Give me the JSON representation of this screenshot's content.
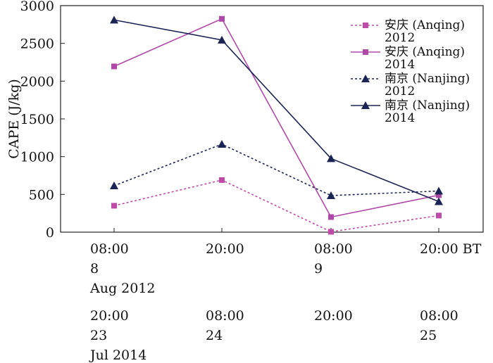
{
  "chart_data": {
    "type": "line",
    "ylabel": "CAPE (J/kg)",
    "ylim": [
      0,
      3000
    ],
    "yticks": [
      0,
      500,
      1000,
      1500,
      2000,
      2500,
      3000
    ],
    "x_categories": [
      {
        "row1": [
          "08:00",
          "8",
          "Aug 2012"
        ],
        "row2": [
          "20:00",
          "23",
          "Jul 2014"
        ]
      },
      {
        "row1": [
          "20:00"
        ],
        "row2": [
          "08:00",
          "24"
        ]
      },
      {
        "row1": [
          "08:00",
          "9"
        ],
        "row2": [
          "20:00"
        ]
      },
      {
        "row1": [
          "20:00 BT"
        ],
        "row2": [
          "08:00",
          "25"
        ]
      }
    ],
    "series": [
      {
        "name": "安庆 (Anqing)",
        "year": "2012",
        "values": [
          350,
          690,
          5,
          220
        ],
        "color": "#c04aa8",
        "dash": true,
        "marker": "square"
      },
      {
        "name": "安庆 (Anqing)",
        "year": "2014",
        "values": [
          2195,
          2825,
          200,
          490
        ],
        "color": "#b048a8",
        "dash": false,
        "marker": "square"
      },
      {
        "name": "南京 (Nanjing)",
        "year": "2012",
        "values": [
          615,
          1165,
          485,
          545
        ],
        "color": "#1c2456",
        "dash": true,
        "marker": "triangle"
      },
      {
        "name": "南京 (Nanjing)",
        "year": "2014",
        "values": [
          2810,
          2545,
          975,
          405
        ],
        "color": "#1c2456",
        "dash": false,
        "marker": "triangle"
      }
    ]
  }
}
